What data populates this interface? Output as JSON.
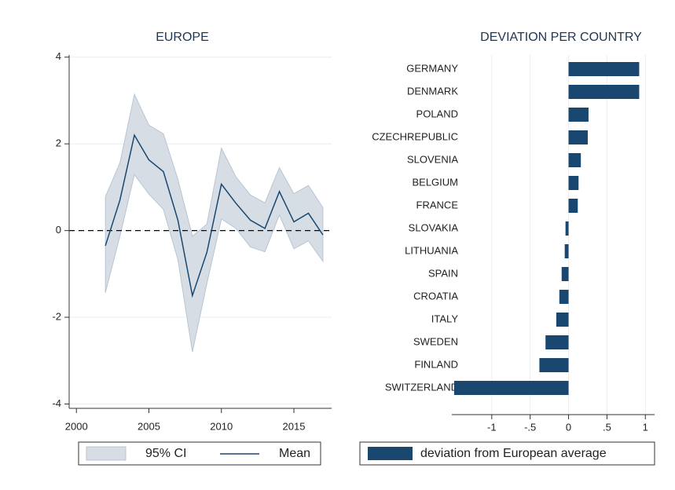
{
  "chart_data": [
    {
      "type": "line",
      "title": "EUROPE",
      "x": [
        2002,
        2003,
        2004,
        2005,
        2006,
        2007,
        2008,
        2009,
        2010,
        2011,
        2012,
        2013,
        2014,
        2015,
        2016,
        2017
      ],
      "band": {
        "name": "95% CI",
        "color": "#d6dde5",
        "upper": [
          0.78,
          1.56,
          3.14,
          2.43,
          2.23,
          1.18,
          -0.13,
          0.15,
          1.9,
          1.24,
          0.82,
          0.64,
          1.45,
          0.85,
          1.04,
          0.53
        ],
        "lower": [
          -1.43,
          -0.13,
          1.29,
          0.84,
          0.49,
          -0.67,
          -2.8,
          -1.22,
          0.27,
          0.05,
          -0.38,
          -0.49,
          0.36,
          -0.42,
          -0.24,
          -0.71
        ]
      },
      "series": [
        {
          "name": "Mean",
          "color": "#1a476f",
          "values": [
            -0.35,
            0.7,
            2.2,
            1.63,
            1.36,
            0.24,
            -1.5,
            -0.5,
            1.07,
            0.63,
            0.24,
            0.05,
            0.9,
            0.2,
            0.4,
            -0.1
          ]
        }
      ],
      "hline": 0,
      "xlim": [
        1999.5,
        2017.6
      ],
      "xticks": [
        2000,
        2005,
        2010,
        2015
      ],
      "ylim": [
        -4.1,
        4.05
      ],
      "yticks": [
        -4,
        -2,
        0,
        2,
        4
      ],
      "grid": true
    },
    {
      "type": "barh",
      "title": "DEVIATION PER COUNTRY",
      "categories": [
        "GERMANY",
        "DENMARK",
        "POLAND",
        "CZECHREPUBLIC",
        "SLOVENIA",
        "BELGIUM",
        "FRANCE",
        "SLOVAKIA",
        "LITHUANIA",
        "SPAIN",
        "CROATIA",
        "ITALY",
        "SWEDEN",
        "FINLAND",
        "SWITZERLAND"
      ],
      "series": [
        {
          "name": "deviation from European average",
          "color": "#1a476f",
          "values": [
            0.92,
            0.92,
            0.26,
            0.25,
            0.16,
            0.13,
            0.12,
            -0.04,
            -0.05,
            -0.09,
            -0.12,
            -0.16,
            -0.3,
            -0.38,
            -1.49
          ]
        }
      ],
      "xlim": [
        -1.52,
        1.12
      ],
      "xticks": [
        -1,
        {
          "value": -0.5,
          "label": "-.5"
        },
        0,
        {
          "value": 0.5,
          "label": ".5"
        },
        1
      ],
      "grid": true
    }
  ]
}
